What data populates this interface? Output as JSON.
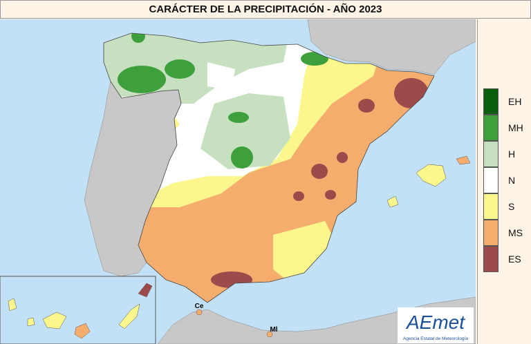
{
  "title": "CARÁCTER DE LA PRECIPITACIÓN - AÑO  2023",
  "legend": [
    {
      "label": "EH",
      "color": "#0b5e0b"
    },
    {
      "label": "MH",
      "color": "#3da03d"
    },
    {
      "label": "H",
      "color": "#c6e0c0"
    },
    {
      "label": "N",
      "color": "#ffffff"
    },
    {
      "label": "S",
      "color": "#fbf78c"
    },
    {
      "label": "MS",
      "color": "#f5ad6e"
    },
    {
      "label": "ES",
      "color": "#9c4a4a"
    }
  ],
  "cities": [
    {
      "label": "Ce"
    },
    {
      "label": "Ml"
    }
  ],
  "logo": {
    "name": "AEmet",
    "subtitle": "Agencia Estatal de Meteorología"
  }
}
